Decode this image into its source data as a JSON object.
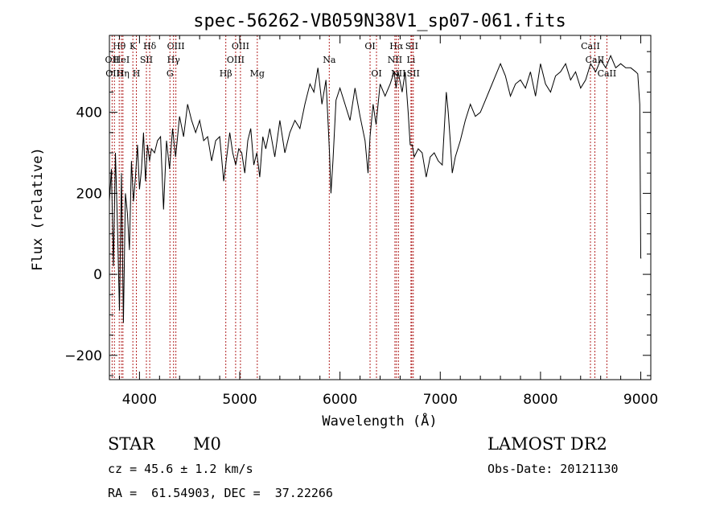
{
  "chart_data": {
    "type": "line",
    "title": "spec-56262-VB059N38V1_sp07-061.fits",
    "xlabel": "Wavelength (Å)",
    "ylabel": "Flux (relative)",
    "xlim": [
      3700,
      9100
    ],
    "ylim": [
      -260,
      590
    ],
    "xticks": [
      {
        "value": 4000,
        "label": "4000"
      },
      {
        "value": 5000,
        "label": "5000"
      },
      {
        "value": 6000,
        "label": "6000"
      },
      {
        "value": 7000,
        "label": "7000"
      },
      {
        "value": 8000,
        "label": "8000"
      },
      {
        "value": 9000,
        "label": "9000"
      }
    ],
    "yticks": [
      {
        "value": -200,
        "label": "−200"
      },
      {
        "value": 0,
        "label": "0"
      },
      {
        "value": 200,
        "label": "200"
      },
      {
        "value": 400,
        "label": "400"
      }
    ],
    "grid": false,
    "series": [
      {
        "x": [
          3700,
          3720,
          3740,
          3760,
          3780,
          3800,
          3820,
          3840,
          3860,
          3880,
          3900,
          3920,
          3940,
          3960,
          3980,
          4000,
          4020,
          4040,
          4060,
          4080,
          4100,
          4120,
          4150,
          4180,
          4210,
          4240,
          4270,
          4300,
          4330,
          4360,
          4400,
          4440,
          4480,
          4520,
          4560,
          4600,
          4640,
          4680,
          4720,
          4760,
          4800,
          4840,
          4870,
          4900,
          4930,
          4960,
          4990,
          5020,
          5050,
          5080,
          5110,
          5140,
          5170,
          5200,
          5230,
          5260,
          5300,
          5350,
          5400,
          5450,
          5500,
          5550,
          5600,
          5650,
          5700,
          5740,
          5780,
          5820,
          5860,
          5880,
          5895,
          5910,
          5930,
          5960,
          6000,
          6050,
          6100,
          6150,
          6200,
          6250,
          6280,
          6300,
          6330,
          6360,
          6400,
          6450,
          6500,
          6540,
          6560,
          6580,
          6620,
          6650,
          6680,
          6700,
          6720,
          6740,
          6780,
          6820,
          6860,
          6900,
          6940,
          6980,
          7020,
          7060,
          7080,
          7100,
          7120,
          7150,
          7200,
          7250,
          7300,
          7350,
          7400,
          7450,
          7500,
          7550,
          7600,
          7650,
          7700,
          7750,
          7800,
          7850,
          7900,
          7950,
          8000,
          8050,
          8100,
          8150,
          8200,
          8250,
          8300,
          8350,
          8400,
          8450,
          8500,
          8550,
          8600,
          8650,
          8700,
          8750,
          8800,
          8850,
          8900,
          8950,
          8970,
          8990,
          9000,
          9005
        ],
        "y": [
          180,
          260,
          20,
          300,
          120,
          -90,
          250,
          -120,
          200,
          150,
          60,
          280,
          180,
          240,
          320,
          210,
          260,
          350,
          230,
          320,
          280,
          310,
          300,
          330,
          340,
          160,
          330,
          260,
          360,
          290,
          390,
          340,
          420,
          380,
          350,
          380,
          330,
          340,
          280,
          330,
          340,
          230,
          290,
          350,
          300,
          270,
          310,
          300,
          250,
          330,
          360,
          270,
          300,
          240,
          340,
          310,
          360,
          290,
          380,
          300,
          350,
          380,
          360,
          420,
          470,
          450,
          510,
          420,
          480,
          380,
          300,
          200,
          280,
          430,
          460,
          420,
          380,
          460,
          390,
          330,
          250,
          340,
          420,
          370,
          470,
          440,
          470,
          500,
          460,
          500,
          450,
          500,
          400,
          320,
          320,
          290,
          310,
          300,
          240,
          290,
          300,
          280,
          270,
          450,
          400,
          330,
          250,
          290,
          330,
          380,
          420,
          390,
          400,
          430,
          460,
          490,
          520,
          490,
          440,
          470,
          480,
          460,
          500,
          440,
          520,
          470,
          450,
          490,
          500,
          520,
          480,
          500,
          460,
          480,
          520,
          500,
          530,
          510,
          540,
          510,
          520,
          510,
          510,
          500,
          495,
          420,
          40,
          40
        ]
      }
    ],
    "lines": [
      {
        "name": "Hθ",
        "x": 3798,
        "row": 0
      },
      {
        "name": "OII",
        "x": 3727,
        "row": 1
      },
      {
        "name": "OIII",
        "x": 3750,
        "row": 2
      },
      {
        "name": "K",
        "x": 3934,
        "row": 0
      },
      {
        "name": "HeI",
        "x": 3820,
        "row": 1
      },
      {
        "name": "Hη",
        "x": 3835,
        "row": 2
      },
      {
        "name": "SII",
        "x": 4069,
        "row": 1
      },
      {
        "name": "H",
        "x": 3969,
        "row": 2
      },
      {
        "name": "Hδ",
        "x": 4102,
        "row": 0
      },
      {
        "name": "OIII",
        "x": 4363,
        "row": 0
      },
      {
        "name": "Hγ",
        "x": 4340,
        "row": 1
      },
      {
        "name": "G",
        "x": 4304,
        "row": 2
      },
      {
        "name": "Hβ",
        "x": 4861,
        "row": 2
      },
      {
        "name": "OIII",
        "x": 5007,
        "row": 0
      },
      {
        "name": "OIII",
        "x": 4959,
        "row": 1
      },
      {
        "name": "Mg",
        "x": 5175,
        "row": 2
      },
      {
        "name": "Na",
        "x": 5893,
        "row": 1
      },
      {
        "name": "OI",
        "x": 6300,
        "row": 0
      },
      {
        "name": "OI",
        "x": 6364,
        "row": 2
      },
      {
        "name": "Hα",
        "x": 6563,
        "row": 0
      },
      {
        "name": "NII",
        "x": 6548,
        "row": 1
      },
      {
        "name": "NII",
        "x": 6583,
        "row": 2
      },
      {
        "name": "SII",
        "x": 6716,
        "row": 0
      },
      {
        "name": "Li",
        "x": 6708,
        "row": 1
      },
      {
        "name": "SII",
        "x": 6731,
        "row": 2
      },
      {
        "name": "CaII",
        "x": 8498,
        "row": 0
      },
      {
        "name": "CaII",
        "x": 8542,
        "row": 1
      },
      {
        "name": "CaII",
        "x": 8662,
        "row": 2
      }
    ]
  },
  "info": {
    "object_class": "STAR",
    "subclass": "M0",
    "survey": "LAMOST DR2",
    "cz": "cz = 45.6 ± 1.2 km/s",
    "obs_date": "Obs-Date: 20121130",
    "coords": "RA =  61.54903, DEC =  37.22266"
  }
}
